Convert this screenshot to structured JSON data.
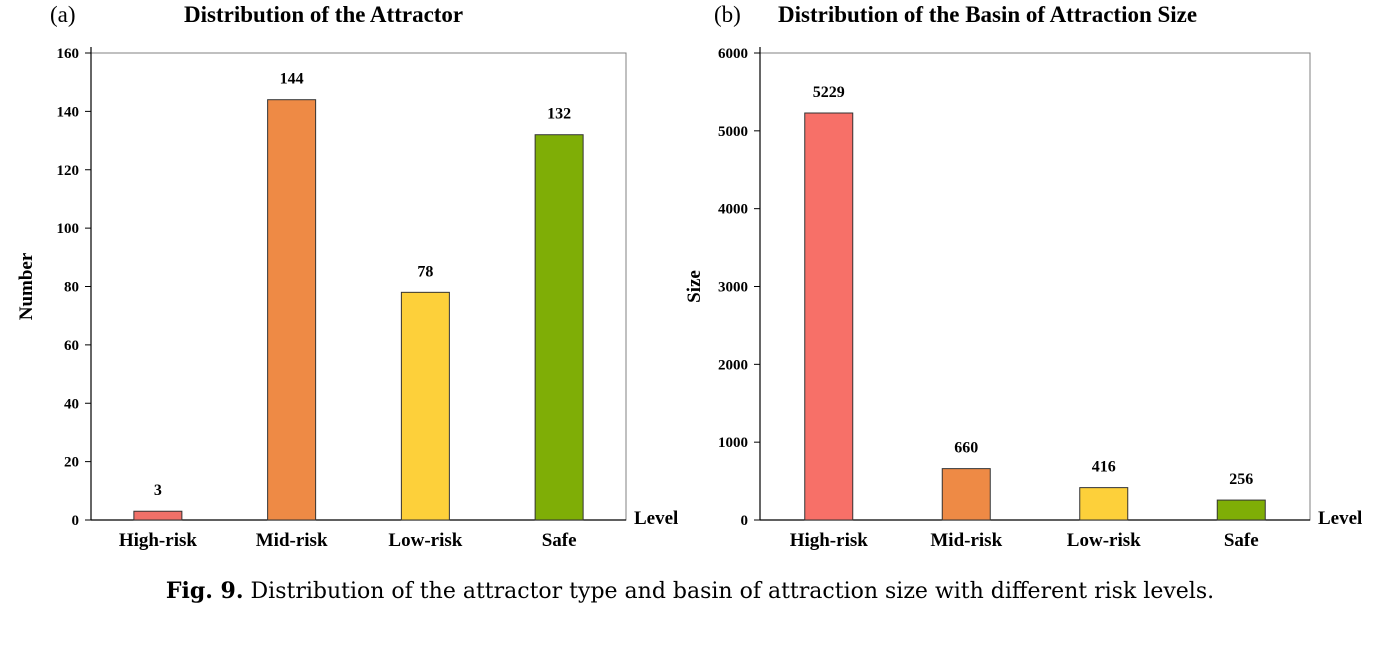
{
  "chart_data": [
    {
      "type": "bar",
      "panel_label": "(a)",
      "title": "Distribution of the Attractor",
      "xlabel": "Level",
      "ylabel": "Number",
      "categories": [
        "High-risk",
        "Mid-risk",
        "Low-risk",
        "Safe"
      ],
      "values": [
        3,
        144,
        78,
        132
      ],
      "data_labels": [
        "3",
        "144",
        "78",
        "132"
      ],
      "colors": [
        "#f07068",
        "#ee8a45",
        "#fdd03a",
        "#7fae06"
      ],
      "ylim": [
        0,
        160
      ],
      "yticks": [
        0,
        20,
        40,
        60,
        80,
        100,
        120,
        140,
        160
      ],
      "grid": false,
      "legend": "none"
    },
    {
      "type": "bar",
      "panel_label": "(b)",
      "title": "Distribution of the Basin of Attraction Size",
      "xlabel": "Level",
      "ylabel": "Size",
      "categories": [
        "High-risk",
        "Mid-risk",
        "Low-risk",
        "Safe"
      ],
      "values": [
        5229,
        660,
        416,
        256
      ],
      "data_labels": [
        "5229",
        "660",
        "416",
        "256"
      ],
      "colors": [
        "#f77068",
        "#ee8a45",
        "#fdd03a",
        "#7fae06"
      ],
      "ylim": [
        0,
        6000
      ],
      "yticks": [
        0,
        1000,
        2000,
        3000,
        4000,
        5000,
        6000
      ],
      "grid": false,
      "legend": "none"
    }
  ],
  "caption": {
    "label": "Fig. 9.",
    "text": "Distribution of the attractor type and basin of attraction size with different risk levels."
  }
}
